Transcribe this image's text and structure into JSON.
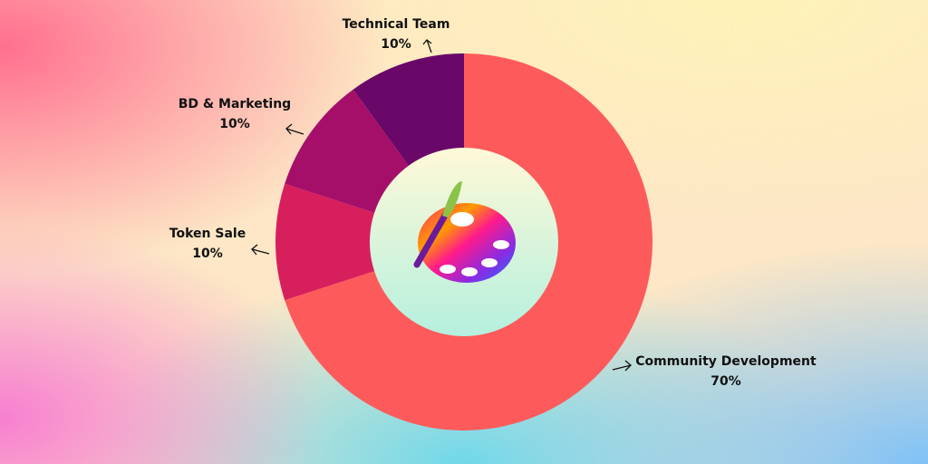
{
  "chart_data": {
    "type": "donut",
    "categories": [
      "Community Development",
      "Token Sale",
      "BD & Marketing",
      "Technical Team"
    ],
    "values": [
      70,
      10,
      10,
      10
    ],
    "value_labels": [
      "70%",
      "10%",
      "10%",
      "10%"
    ],
    "colors": [
      "#fd5b5b",
      "#d81f5e",
      "#a50f6a",
      "#690868"
    ]
  }
}
